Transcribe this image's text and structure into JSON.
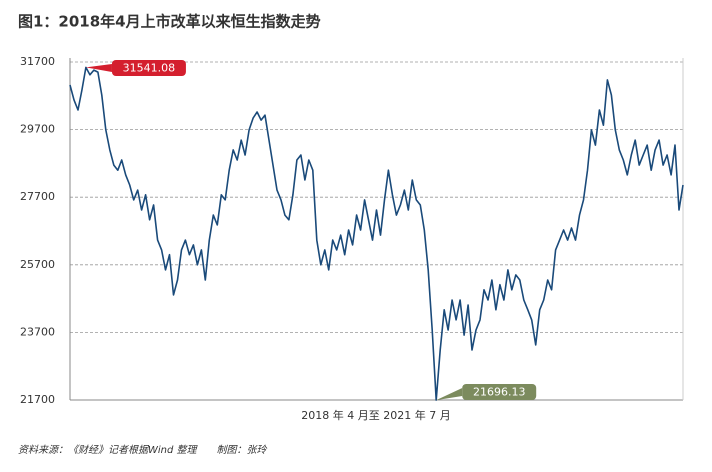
{
  "chart_data": {
    "type": "line",
    "title": "图1：2018年4月上市改革以来恒生指数走势",
    "x_label": "2018 年 4 月至 2021 年 7 月",
    "source": "资料来源：《财经》记者根据Wind 整理　　制图：张玲",
    "color": "#1a4a7a",
    "ylim": [
      21700,
      31700
    ],
    "yticks": [
      21700,
      23700,
      25700,
      27700,
      29700,
      31700
    ],
    "grid": true,
    "annotations": [
      31541.08,
      21696.13
    ],
    "annotation_colors": [
      "#d41f2e",
      "#7c8b5e"
    ],
    "values": [
      31020,
      30580,
      30280,
      30870,
      31541.08,
      31320,
      31460,
      31400,
      30720,
      29690,
      29100,
      28650,
      28500,
      28800,
      28360,
      28060,
      27620,
      27910,
      27320,
      27770,
      27030,
      27470,
      26430,
      26140,
      25550,
      26000,
      24810,
      25250,
      26140,
      26430,
      26000,
      26290,
      25700,
      26140,
      25250,
      26430,
      27170,
      26880,
      27770,
      27620,
      28500,
      29100,
      28800,
      29390,
      28950,
      29690,
      30040,
      30220,
      29980,
      30130,
      29390,
      28650,
      27910,
      27620,
      27170,
      27030,
      27770,
      28800,
      28950,
      28210,
      28800,
      28500,
      26430,
      25700,
      26140,
      25550,
      26430,
      26140,
      26580,
      26000,
      26730,
      26290,
      27170,
      26730,
      27620,
      27030,
      26430,
      27320,
      26580,
      27620,
      28500,
      27770,
      27170,
      27470,
      27910,
      27320,
      28210,
      27620,
      27470,
      26730,
      25550,
      23770,
      21696.13,
      23180,
      24370,
      23770,
      24660,
      24070,
      24660,
      23620,
      24510,
      23180,
      23770,
      24070,
      24960,
      24660,
      25250,
      24370,
      25110,
      24660,
      25550,
      24960,
      25400,
      25250,
      24660,
      24370,
      24070,
      23330,
      24370,
      24660,
      25250,
      24960,
      26140,
      26430,
      26730,
      26430,
      26790,
      26430,
      27170,
      27620,
      28500,
      29690,
      29240,
      30280,
      29830,
      31170,
      30720,
      29690,
      29100,
      28800,
      28360,
      28950,
      29390,
      28650,
      28950,
      29240,
      28500,
      29100,
      29390,
      28650,
      28950,
      28360,
      29240,
      27320,
      28060
    ]
  }
}
